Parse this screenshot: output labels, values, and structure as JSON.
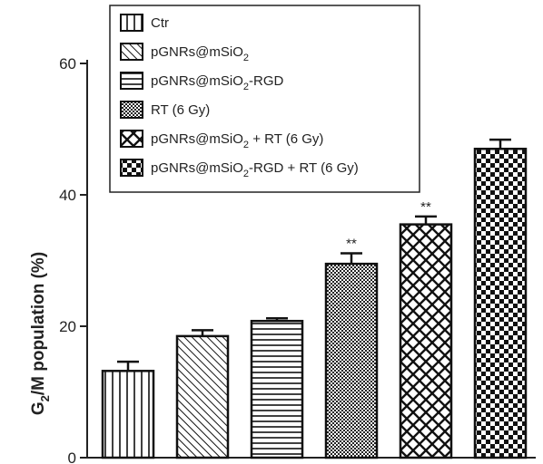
{
  "chart_data": {
    "type": "bar",
    "ylabel": "G2/M population (%)",
    "ylabel_parts": {
      "pre": "G",
      "sub": "2",
      "post": "/M population (%)"
    },
    "ylim": [
      0,
      60
    ],
    "yticks": [
      "0",
      "20",
      "40",
      "60"
    ],
    "grid": false,
    "legend_position": "top-left",
    "categories": [
      "Ctr",
      "pGNRs@mSiO2",
      "pGNRs@mSiO2-RGD",
      "RT (6 Gy)",
      "pGNRs@mSiO2 + RT (6 Gy)",
      "pGNRs@mSiO2-RGD + RT (6 Gy)"
    ],
    "values": [
      13.2,
      18.5,
      20.8,
      29.5,
      35.5,
      47.0
    ],
    "errors": [
      1.4,
      0.9,
      0.4,
      1.6,
      1.2,
      1.4
    ],
    "significance": [
      "",
      "",
      "",
      "**",
      "**",
      ""
    ],
    "patterns": [
      "vertical",
      "diagonal",
      "horizontal",
      "dots",
      "crosshatch",
      "checker"
    ],
    "legend": [
      {
        "pre": "Ctr",
        "sub": "",
        "post": "",
        "pattern": "vertical"
      },
      {
        "pre": "pGNRs@mSiO",
        "sub": "2",
        "post": "",
        "pattern": "diagonal"
      },
      {
        "pre": "pGNRs@mSiO",
        "sub": "2",
        "post": "-RGD",
        "pattern": "horizontal"
      },
      {
        "pre": "RT (6 Gy)",
        "sub": "",
        "post": "",
        "pattern": "dots"
      },
      {
        "pre": "pGNRs@mSiO",
        "sub": "2",
        "post": " + RT (6 Gy)",
        "pattern": "crosshatch"
      },
      {
        "pre": "pGNRs@mSiO",
        "sub": "2",
        "post": "-RGD + RT (6 Gy)",
        "pattern": "checker"
      }
    ]
  }
}
